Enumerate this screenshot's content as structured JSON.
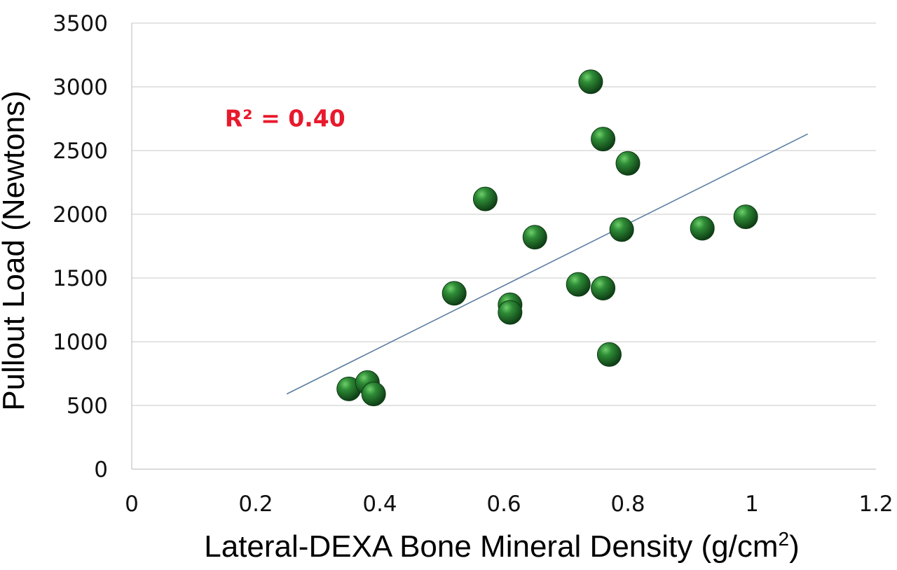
{
  "chart_data": {
    "type": "scatter",
    "title": "",
    "xlabel": "Lateral-DEXA Bone Mineral Density (g/cm",
    "xlabel_sup": "2",
    "xlabel_close": ")",
    "ylabel": "Pullout Load (Newtons)",
    "xlim": [
      0,
      1.2
    ],
    "ylim": [
      0,
      3500
    ],
    "x_ticks": [
      "0",
      "0.2",
      "0.4",
      "0.6",
      "0.8",
      "1",
      "1.2"
    ],
    "y_ticks": [
      "0",
      "500",
      "1000",
      "1500",
      "2000",
      "2500",
      "3000",
      "3500"
    ],
    "grid": "horizontal",
    "legend": "none",
    "marker_color": "#1f6b2a",
    "trendline_color": "#5b7fa0",
    "annotation": {
      "text": "R² = 0.40",
      "color": "#e8192c",
      "x": 0.15,
      "y": 2690
    },
    "series": [
      {
        "points": [
          {
            "x": 0.35,
            "y": 630
          },
          {
            "x": 0.38,
            "y": 680
          },
          {
            "x": 0.39,
            "y": 590
          },
          {
            "x": 0.52,
            "y": 1380
          },
          {
            "x": 0.57,
            "y": 2120
          },
          {
            "x": 0.61,
            "y": 1290
          },
          {
            "x": 0.61,
            "y": 1230
          },
          {
            "x": 0.65,
            "y": 1820
          },
          {
            "x": 0.72,
            "y": 1450
          },
          {
            "x": 0.74,
            "y": 3040
          },
          {
            "x": 0.76,
            "y": 2590
          },
          {
            "x": 0.76,
            "y": 1420
          },
          {
            "x": 0.77,
            "y": 900
          },
          {
            "x": 0.79,
            "y": 1880
          },
          {
            "x": 0.8,
            "y": 2400
          },
          {
            "x": 0.92,
            "y": 1890
          },
          {
            "x": 0.99,
            "y": 1980
          }
        ]
      }
    ],
    "trendline": {
      "x1": 0.25,
      "y1": 590,
      "x2": 1.09,
      "y2": 2630
    }
  }
}
